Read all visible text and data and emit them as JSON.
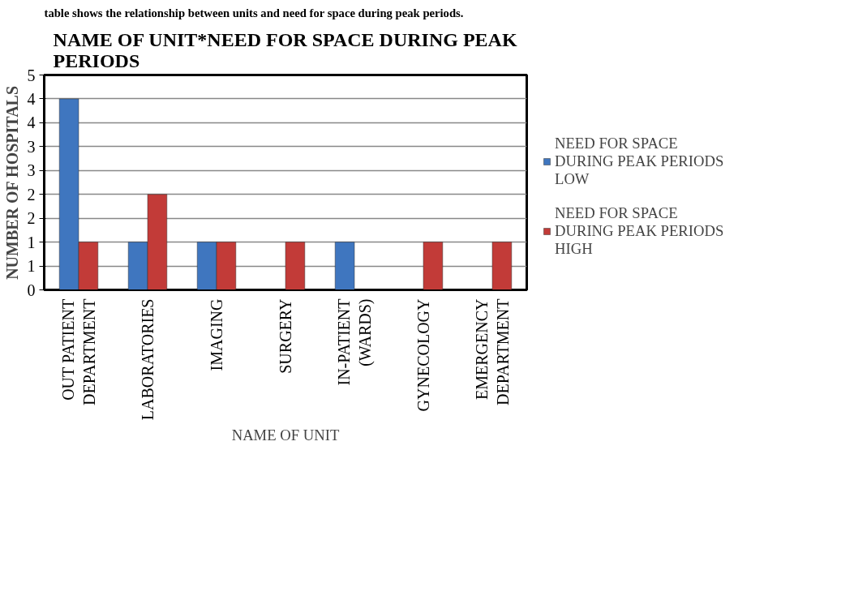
{
  "chart_data": {
    "type": "bar",
    "title": "NAME OF UNIT*NEED FOR SPACE DURING PEAK PERIODS",
    "xlabel": "NAME OF UNIT",
    "ylabel": "NUMBER OF HOSPITALS",
    "annotations": [
      "table shows the relationship between units and need for space during peak periods."
    ],
    "categories": [
      "OUT PATIENT DEPARTMENT",
      "LABORATORIES",
      "IMAGING",
      "SURGERY",
      "IN-PATIENT (WARDS)",
      "GYNECOLOGY",
      "EMERGENCY DEPARTMENT"
    ],
    "series": [
      {
        "name": "NEED FOR SPACE DURING PEAK PERIODS LOW",
        "color": "#3f76bf",
        "values": [
          4,
          1,
          1,
          null,
          1,
          null,
          null
        ]
      },
      {
        "name": "NEED FOR SPACE DURING PEAK PERIODS HIGH",
        "color": "#c23b38",
        "values": [
          1,
          2,
          1,
          1,
          null,
          1,
          1
        ]
      }
    ],
    "ylim": [
      0,
      4.5
    ],
    "yticks": [
      0,
      {
        "value": 0.5,
        "label": "1"
      },
      1,
      {
        "value": 1.5,
        "label": "2"
      },
      2,
      {
        "value": 2.5,
        "label": "3"
      },
      3,
      {
        "value": 3.5,
        "label": "4"
      },
      4,
      {
        "value": 4.5,
        "label": "5"
      }
    ],
    "grid": "y",
    "legend": "right"
  }
}
